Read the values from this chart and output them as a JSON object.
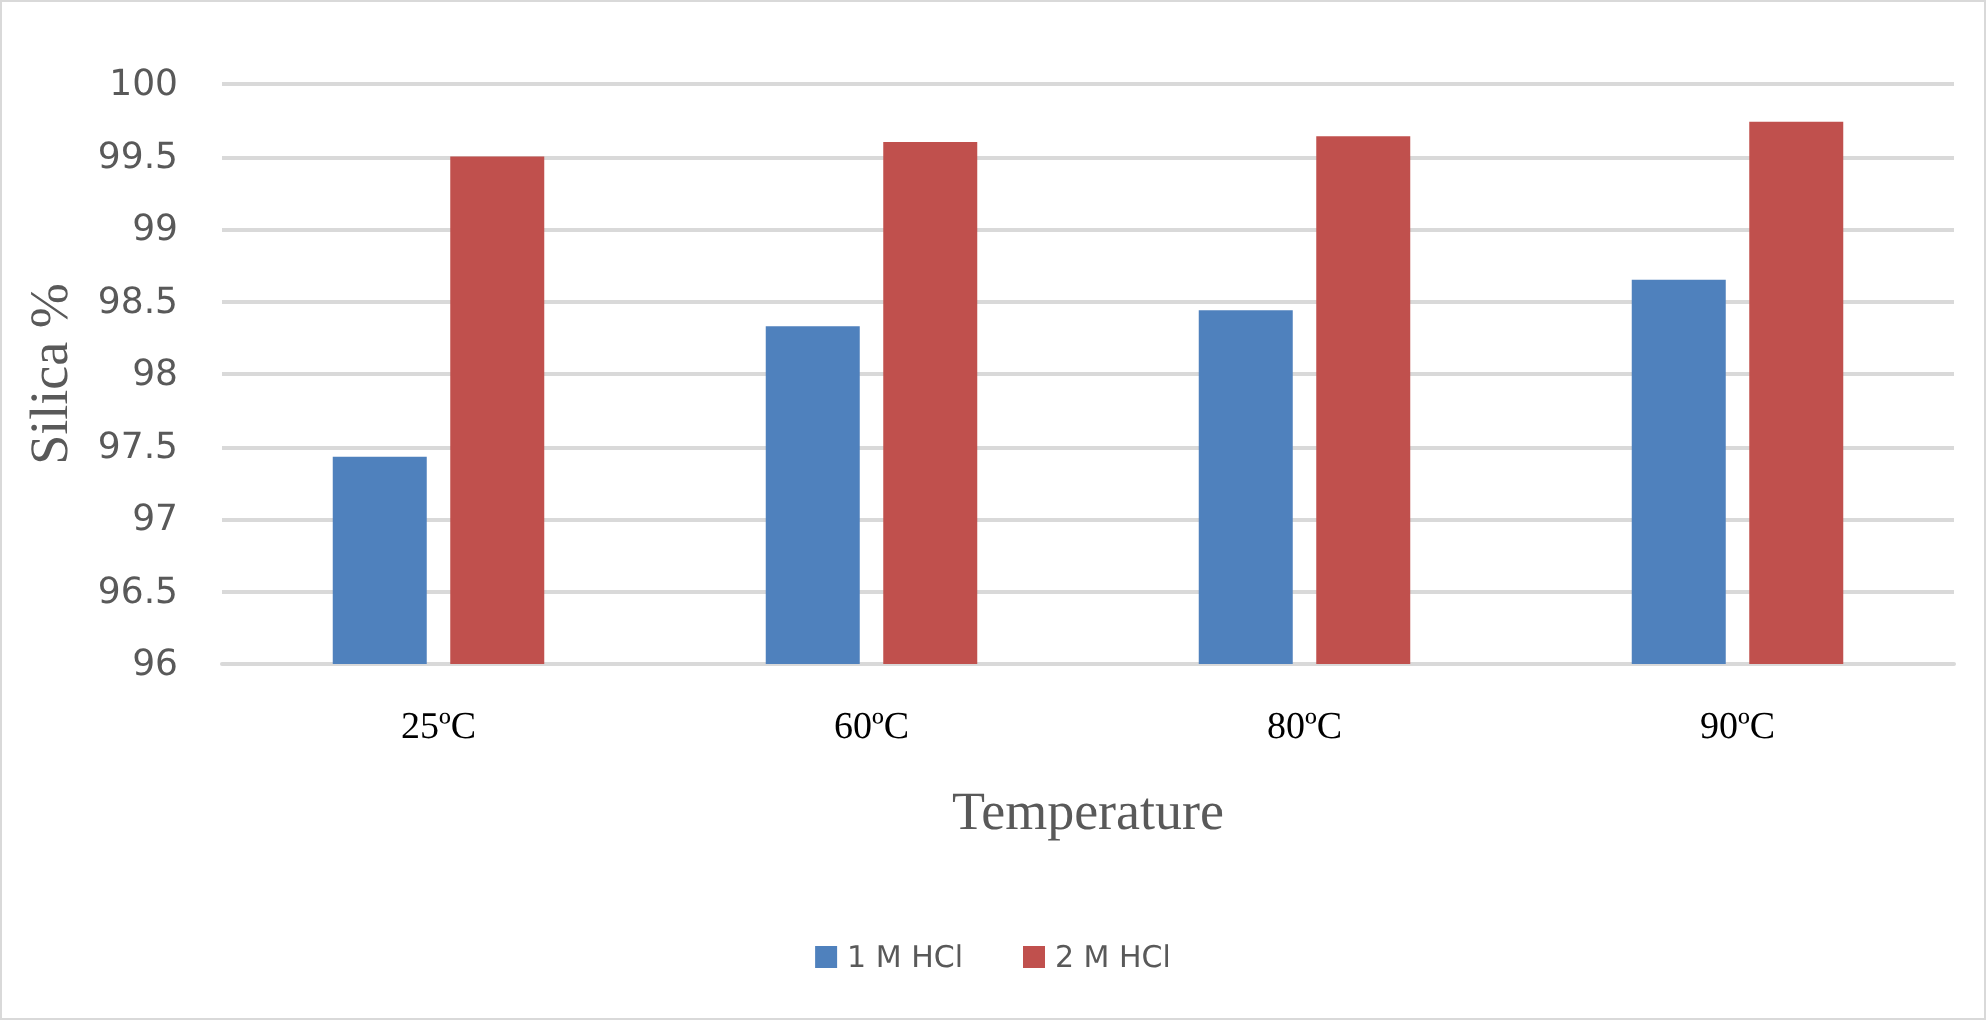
{
  "chart_data": {
    "type": "bar",
    "xlabel": "Temperature",
    "ylabel": "Silica %",
    "categories": [
      "25ºC",
      "60ºC",
      "80ºC",
      "90ºC"
    ],
    "series": [
      {
        "name": "1 M HCl",
        "color": "#4f81bd",
        "values": [
          97.43,
          98.33,
          98.44,
          98.65
        ]
      },
      {
        "name": "2 M HCl",
        "color": "#c0504d",
        "values": [
          99.5,
          99.6,
          99.64,
          99.74
        ]
      }
    ],
    "ylim": [
      96,
      100
    ],
    "yticks": [
      96,
      96.5,
      97,
      97.5,
      98,
      98.5,
      99,
      99.5,
      100
    ],
    "grid": "y",
    "legend": "bottom"
  }
}
